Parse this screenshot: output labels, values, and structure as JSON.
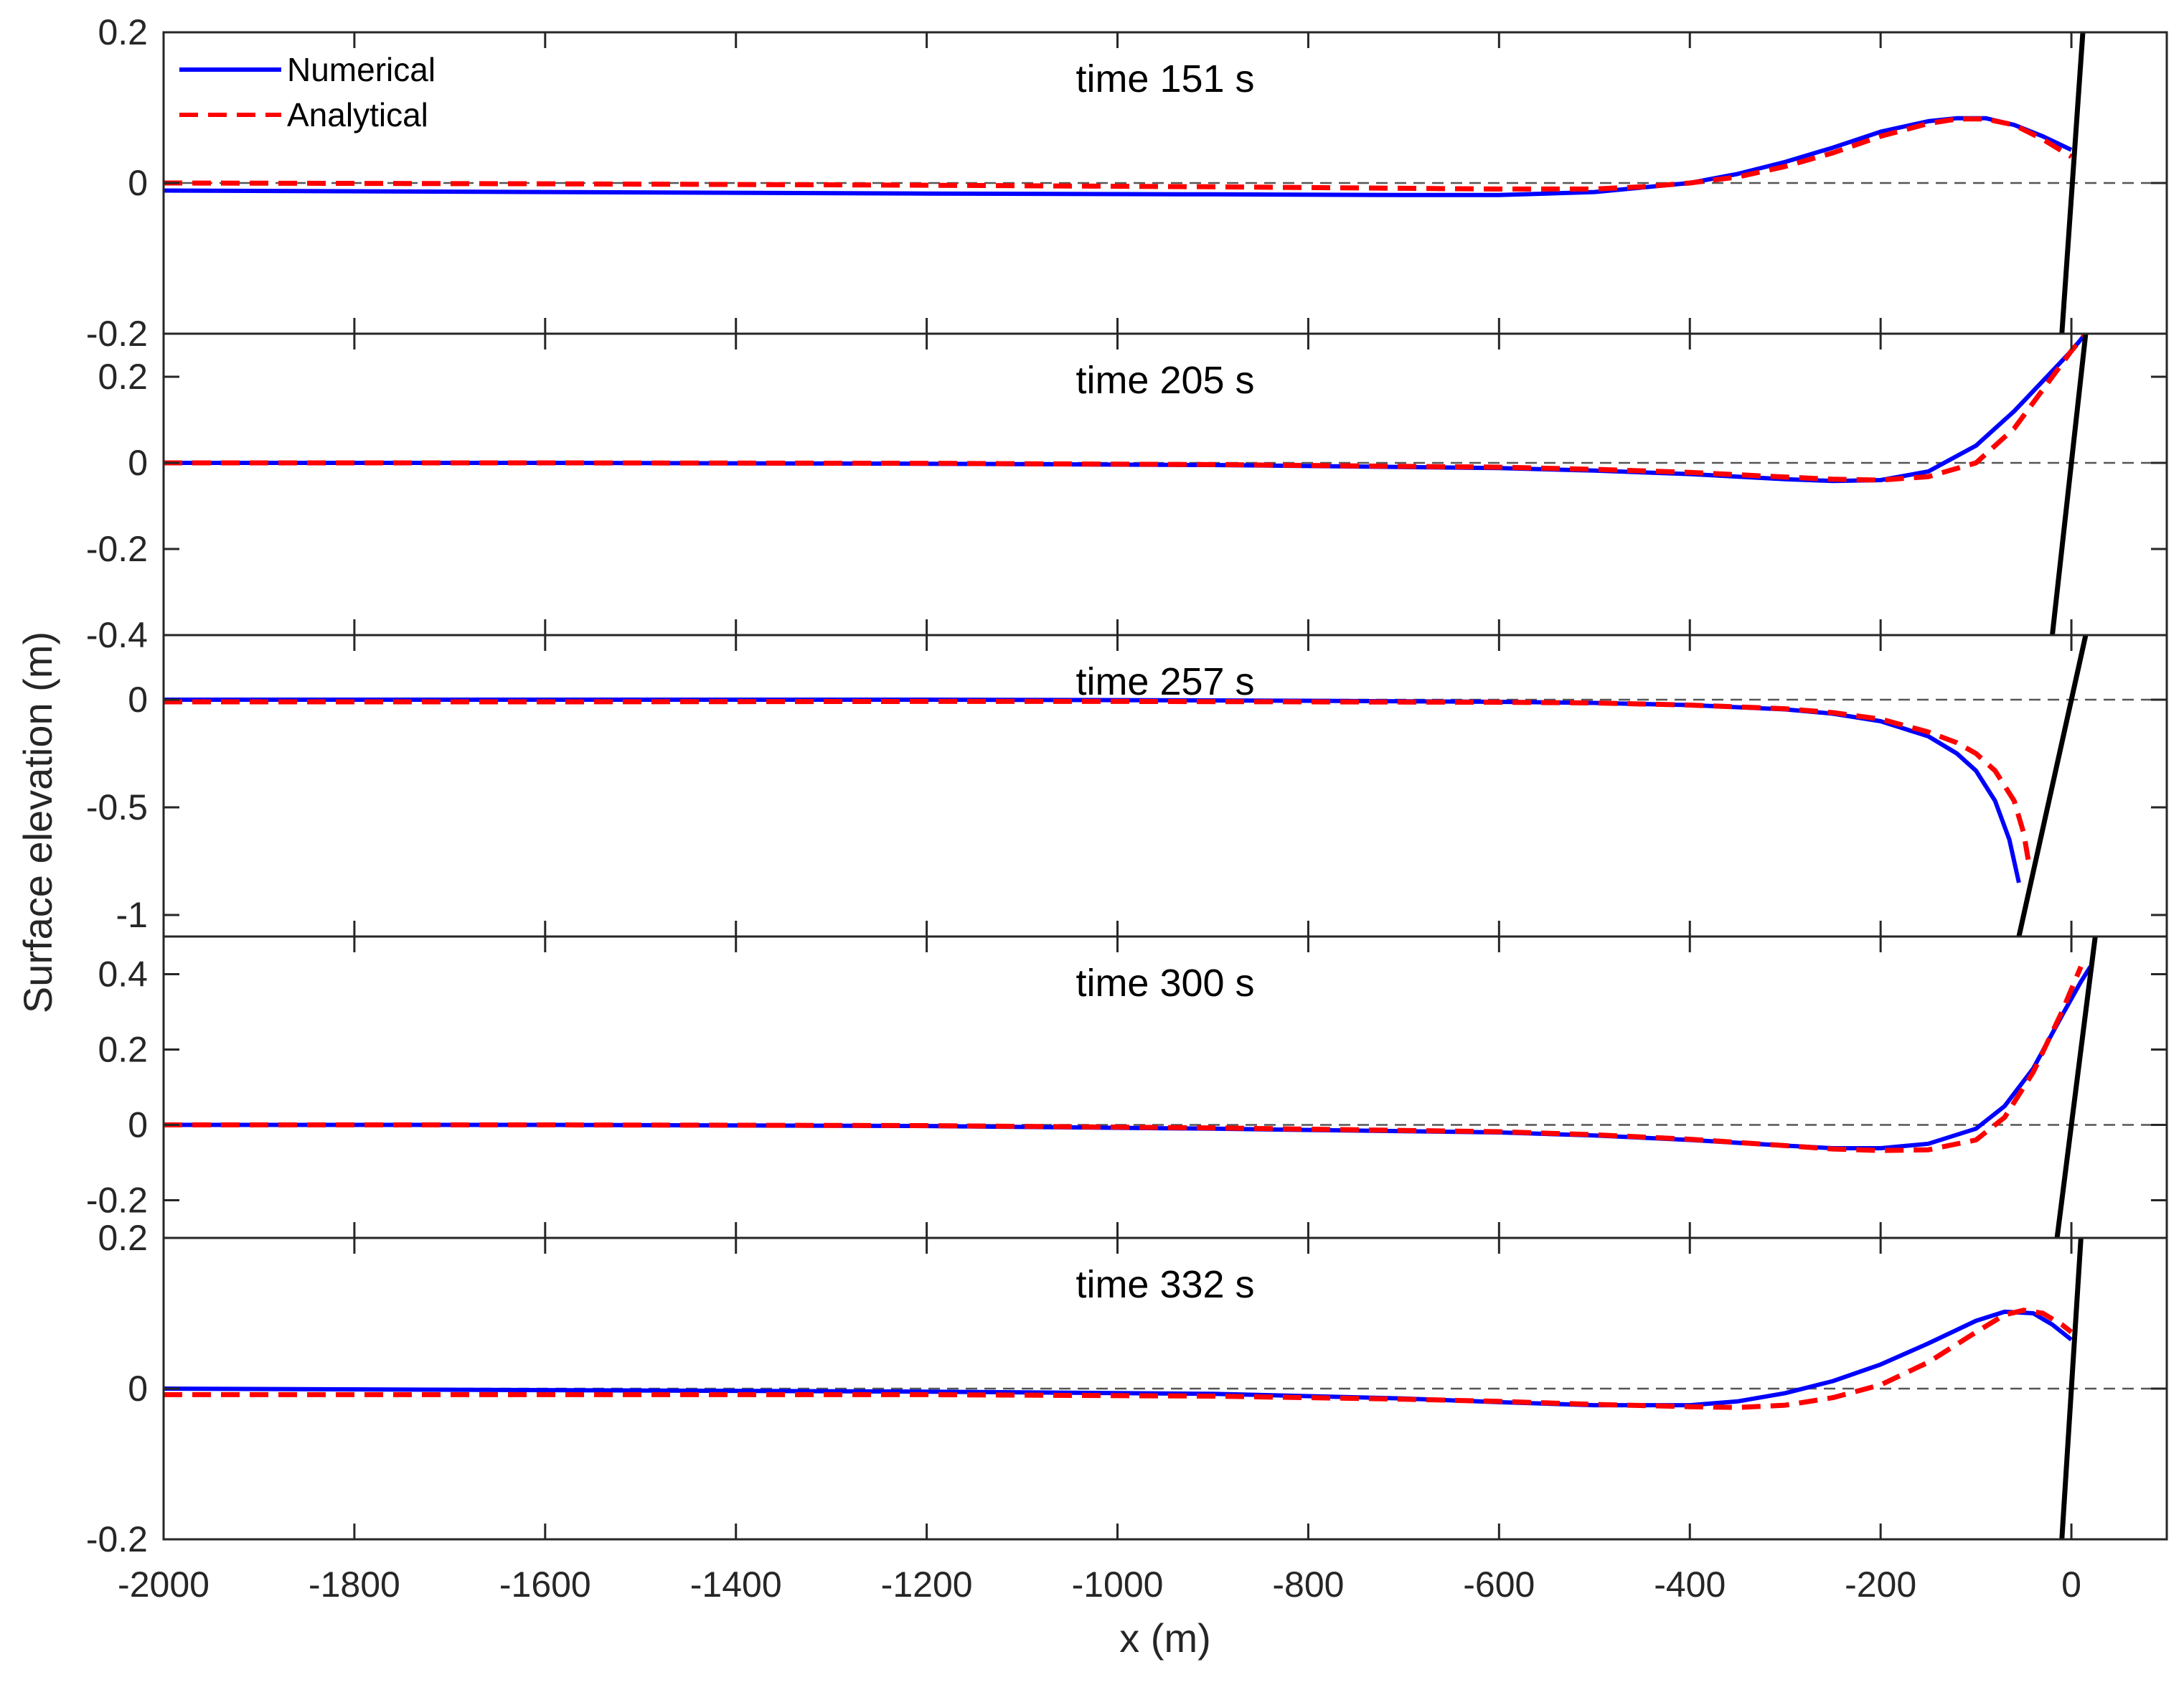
{
  "chart_data": {
    "type": "line",
    "xlabel": "x (m)",
    "ylabel": "Surface elevation (m)",
    "xlim": [
      -2000,
      100
    ],
    "xticks": [
      -2000,
      -1800,
      -1600,
      -1400,
      -1200,
      -1000,
      -800,
      -600,
      -400,
      -200,
      0
    ],
    "xtick_labels": [
      "-2000",
      "-1800",
      "-1600",
      "-1400",
      "-1200",
      "-1000",
      "-800",
      "-600",
      "-400",
      "-200",
      "0"
    ],
    "legend": {
      "location": "top-left",
      "entries": [
        {
          "name": "Numerical",
          "color": "#0000ff",
          "style": "solid"
        },
        {
          "name": "Analytical",
          "color": "#ff0000",
          "style": "dashed"
        }
      ]
    },
    "colors": {
      "numerical": "#0000ff",
      "analytical": "#ff0000",
      "beach": "#000000",
      "zero_line": "#555555"
    },
    "panels": [
      {
        "title": "time 151 s",
        "ylim": [
          -0.2,
          0.2
        ],
        "yticks": [
          -0.2,
          0,
          0.2
        ],
        "ytick_labels": [
          "-0.2",
          "0",
          "0.2"
        ],
        "beach": {
          "x": [
            -10,
            12
          ],
          "y": [
            -0.2,
            0.2
          ]
        },
        "series": [
          {
            "name": "Numerical",
            "x": [
              -2000,
              -1600,
              -1200,
              -900,
              -700,
              -600,
              -500,
              -450,
              -400,
              -350,
              -300,
              -250,
              -200,
              -150,
              -120,
              -90,
              -60,
              -30,
              0
            ],
            "y": [
              -0.01,
              -0.012,
              -0.014,
              -0.015,
              -0.016,
              -0.016,
              -0.012,
              -0.006,
              0.0,
              0.012,
              0.028,
              0.047,
              0.068,
              0.082,
              0.086,
              0.086,
              0.077,
              0.062,
              0.044
            ]
          },
          {
            "name": "Analytical",
            "x": [
              -2000,
              -1600,
              -1200,
              -900,
              -700,
              -600,
              -500,
              -450,
              -400,
              -350,
              -300,
              -250,
              -200,
              -150,
              -120,
              -90,
              -60,
              -30,
              0
            ],
            "y": [
              0.0,
              -0.001,
              -0.003,
              -0.005,
              -0.007,
              -0.008,
              -0.008,
              -0.005,
              0.0,
              0.008,
              0.022,
              0.04,
              0.062,
              0.079,
              0.085,
              0.085,
              0.077,
              0.058,
              0.035
            ]
          }
        ]
      },
      {
        "title": "time 205 s",
        "ylim": [
          -0.4,
          0.3
        ],
        "yticks": [
          -0.4,
          -0.2,
          0,
          0.2
        ],
        "ytick_labels": [
          "-0.4",
          "-0.2",
          "0",
          "0.2"
        ],
        "beach": {
          "x": [
            -20,
            15
          ],
          "y": [
            -0.4,
            0.3
          ]
        },
        "series": [
          {
            "name": "Numerical",
            "x": [
              -2000,
              -1600,
              -1200,
              -900,
              -600,
              -500,
              -400,
              -300,
              -250,
              -200,
              -150,
              -100,
              -60,
              -30,
              0,
              15
            ],
            "y": [
              0.0,
              0.0,
              -0.002,
              -0.005,
              -0.012,
              -0.018,
              -0.026,
              -0.038,
              -0.042,
              -0.04,
              -0.02,
              0.04,
              0.12,
              0.19,
              0.26,
              0.3
            ]
          },
          {
            "name": "Analytical",
            "x": [
              -2000,
              -1600,
              -1200,
              -900,
              -600,
              -500,
              -400,
              -300,
              -250,
              -200,
              -150,
              -100,
              -60,
              -30,
              0,
              15
            ],
            "y": [
              0.0,
              0.0,
              -0.001,
              -0.004,
              -0.01,
              -0.015,
              -0.022,
              -0.033,
              -0.038,
              -0.04,
              -0.032,
              0.0,
              0.08,
              0.17,
              0.26,
              0.3
            ]
          }
        ]
      },
      {
        "title": "time 257 s",
        "ylim": [
          -1.1,
          0.3
        ],
        "yticks": [
          -1,
          -0.5,
          0
        ],
        "ytick_labels": [
          "-1",
          "-0.5",
          "0"
        ],
        "beach": {
          "x": [
            -55,
            15
          ],
          "y": [
            -1.1,
            0.3
          ]
        },
        "series": [
          {
            "name": "Numerical",
            "x": [
              -2000,
              -1600,
              -1200,
              -1000,
              -800,
              -600,
              -500,
              -400,
              -300,
              -250,
              -200,
              -150,
              -120,
              -100,
              -80,
              -65,
              -55
            ],
            "y": [
              0.0,
              0.0,
              0.0,
              -0.002,
              -0.005,
              -0.01,
              -0.015,
              -0.025,
              -0.045,
              -0.065,
              -0.1,
              -0.17,
              -0.25,
              -0.33,
              -0.47,
              -0.65,
              -0.85
            ]
          },
          {
            "name": "Analytical",
            "x": [
              -2000,
              -1600,
              -1200,
              -1000,
              -800,
              -600,
              -500,
              -400,
              -300,
              -250,
              -200,
              -150,
              -120,
              -100,
              -80,
              -60,
              -50,
              -45
            ],
            "y": [
              -0.01,
              -0.01,
              -0.008,
              -0.008,
              -0.01,
              -0.012,
              -0.015,
              -0.025,
              -0.042,
              -0.06,
              -0.09,
              -0.15,
              -0.2,
              -0.25,
              -0.33,
              -0.47,
              -0.62,
              -0.75
            ]
          }
        ]
      },
      {
        "title": "time 300 s",
        "ylim": [
          -0.3,
          0.5
        ],
        "yticks": [
          -0.2,
          0,
          0.2,
          0.4
        ],
        "ytick_labels": [
          "-0.2",
          "0",
          "0.2",
          "0.4"
        ],
        "beach": {
          "x": [
            -15,
            25
          ],
          "y": [
            -0.3,
            0.5
          ]
        },
        "series": [
          {
            "name": "Numerical",
            "x": [
              -2000,
              -1600,
              -1200,
              -900,
              -600,
              -500,
              -400,
              -300,
              -250,
              -200,
              -150,
              -100,
              -70,
              -40,
              -10,
              10,
              20
            ],
            "y": [
              0.0,
              0.0,
              -0.003,
              -0.01,
              -0.02,
              -0.028,
              -0.04,
              -0.055,
              -0.062,
              -0.062,
              -0.05,
              -0.01,
              0.05,
              0.15,
              0.29,
              0.38,
              0.42
            ]
          },
          {
            "name": "Analytical",
            "x": [
              -2000,
              -1600,
              -1200,
              -900,
              -600,
              -500,
              -400,
              -300,
              -250,
              -200,
              -150,
              -100,
              -70,
              -40,
              -10,
              10
            ],
            "y": [
              0.0,
              0.0,
              -0.002,
              -0.008,
              -0.018,
              -0.026,
              -0.038,
              -0.055,
              -0.064,
              -0.068,
              -0.066,
              -0.04,
              0.02,
              0.14,
              0.3,
              0.42
            ]
          }
        ]
      },
      {
        "title": "time 332 s",
        "ylim": [
          -0.2,
          0.2
        ],
        "yticks": [
          -0.2,
          0,
          0.2
        ],
        "ytick_labels": [
          "-0.2",
          "0",
          "0.2"
        ],
        "beach": {
          "x": [
            -10,
            10
          ],
          "y": [
            -0.2,
            0.2
          ]
        },
        "series": [
          {
            "name": "Numerical",
            "x": [
              -2000,
              -1600,
              -1200,
              -900,
              -700,
              -600,
              -500,
              -400,
              -350,
              -300,
              -250,
              -200,
              -150,
              -100,
              -70,
              -40,
              -20,
              0
            ],
            "y": [
              0.0,
              -0.002,
              -0.004,
              -0.007,
              -0.013,
              -0.018,
              -0.022,
              -0.022,
              -0.017,
              -0.006,
              0.01,
              0.032,
              0.06,
              0.09,
              0.102,
              0.1,
              0.085,
              0.065
            ]
          },
          {
            "name": "Analytical",
            "x": [
              -2000,
              -1600,
              -1200,
              -900,
              -700,
              -600,
              -500,
              -400,
              -350,
              -300,
              -250,
              -200,
              -150,
              -100,
              -70,
              -50,
              -30,
              -10,
              0
            ],
            "y": [
              -0.008,
              -0.008,
              -0.008,
              -0.01,
              -0.014,
              -0.017,
              -0.021,
              -0.024,
              -0.025,
              -0.022,
              -0.012,
              0.005,
              0.035,
              0.075,
              0.098,
              0.104,
              0.1,
              0.085,
              0.075
            ]
          }
        ]
      }
    ]
  }
}
